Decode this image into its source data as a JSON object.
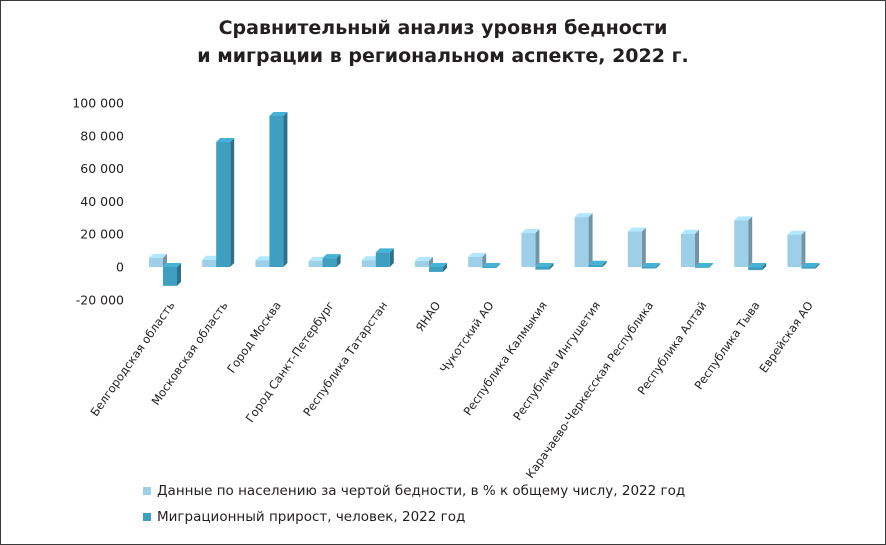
{
  "chart_data": {
    "type": "bar",
    "title_lines": [
      "Сравнительный анализ уровня бедности",
      "и миграции в региональном аспекте, 2022 г."
    ],
    "categories": [
      "Белгородская область",
      "Московская  область",
      "Город Москва",
      "Город Санкт-Петербург",
      "Республика Татарстан",
      "ЯНАО",
      "Чукотский АО",
      "Республика Калмыкия",
      "Республика Ингушетия",
      "Карачаево-Черкесская Республика",
      "Республика Алтай",
      "Республика Тыва",
      "Еврейская АО"
    ],
    "series": [
      {
        "name": "Данные по населению за чертой бедности, в % к общему числу, 2022 год",
        "color": "#9dcfe8",
        "values": [
          5600,
          4400,
          4100,
          3700,
          4100,
          3700,
          6100,
          20700,
          30400,
          21600,
          20200,
          28400,
          19700
        ]
      },
      {
        "name": "Миграционный прирост, человек, 2022 год",
        "color": "#3e9fc0",
        "values": [
          -11500,
          76200,
          92100,
          5400,
          8900,
          -3000,
          -600,
          -1600,
          1400,
          -900,
          -500,
          -1900,
          -1000
        ]
      }
    ],
    "y_ticks": [
      "100 000",
      "80 000",
      "60 000",
      "40 000",
      "20 000",
      "0",
      "-20 000"
    ],
    "ylim": [
      -20000,
      100000
    ],
    "grid": false,
    "legend_position": "bottom-left"
  }
}
